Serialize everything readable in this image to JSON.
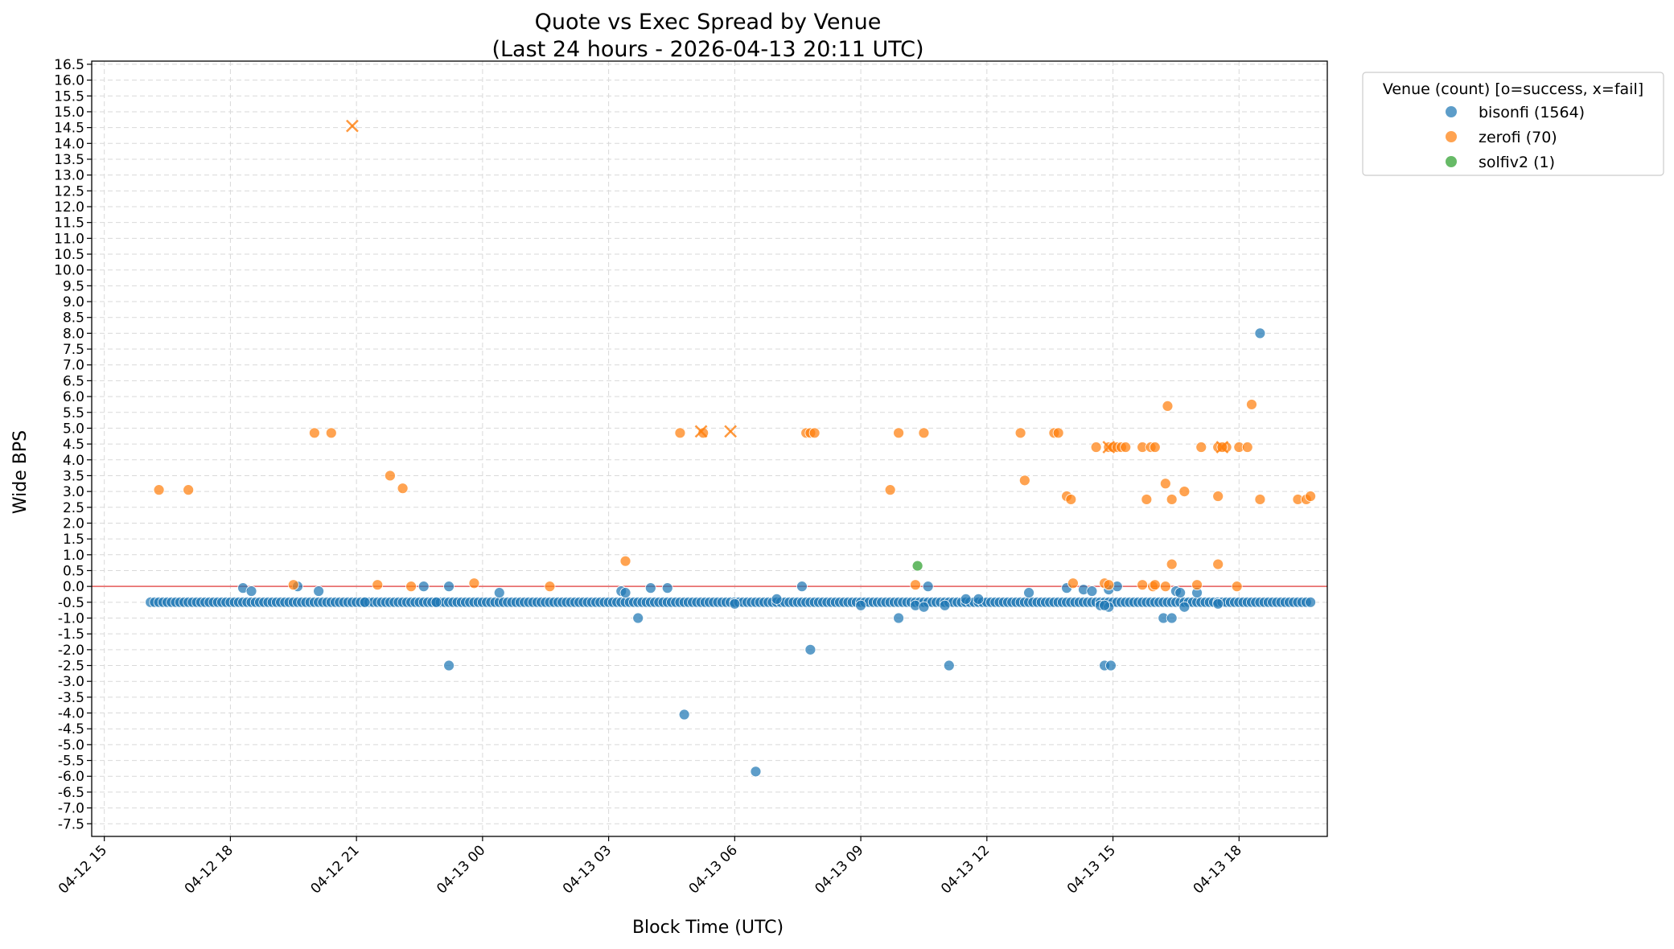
{
  "chart_data": {
    "type": "scatter",
    "title": "Quote vs Exec Spread by Venue",
    "subtitle": "(Last 24 hours - 2026-04-13 20:11 UTC)",
    "xlabel": "Block Time (UTC)",
    "ylabel": "Wide BPS",
    "x_unit": "hours since 04-12 15:00 UTC",
    "xlim": [
      -0.3,
      29.1
    ],
    "ylim": [
      -7.9,
      16.6
    ],
    "y_ticks": [
      16.5,
      16.0,
      15.5,
      15.0,
      14.5,
      14.0,
      13.5,
      13.0,
      12.5,
      12.0,
      11.5,
      11.0,
      10.5,
      10.0,
      9.5,
      9.0,
      8.5,
      8.0,
      7.5,
      7.0,
      6.5,
      6.0,
      5.5,
      5.0,
      4.5,
      4.0,
      3.5,
      3.0,
      2.5,
      2.0,
      1.5,
      1.0,
      0.5,
      0.0,
      -0.5,
      -1.0,
      -1.5,
      -2.0,
      -2.5,
      -3.0,
      -3.5,
      -4.0,
      -4.5,
      -5.0,
      -5.5,
      -6.0,
      -6.5,
      -7.0,
      -7.5
    ],
    "y_tick_labels": [
      "16.5",
      "16.0",
      "15.5",
      "15.0",
      "14.5",
      "14.0",
      "13.5",
      "13.0",
      "12.5",
      "12.0",
      "11.5",
      "11.0",
      "10.5",
      "10.0",
      "9.5",
      "9.0",
      "8.5",
      "8.0",
      "7.5",
      "7.0",
      "6.5",
      "6.0",
      "5.5",
      "5.0",
      "4.5",
      "4.0",
      "3.5",
      "3.0",
      "2.5",
      "2.0",
      "1.5",
      "1.0",
      "0.5",
      "0.0",
      "-0.5",
      "-1.0",
      "-1.5",
      "-2.0",
      "-2.5",
      "-3.0",
      "-3.5",
      "-4.0",
      "-4.5",
      "-5.0",
      "-5.5",
      "-6.0",
      "-6.5",
      "-7.0",
      "-7.5"
    ],
    "x_ticks": [
      0,
      3,
      6,
      9,
      12,
      15,
      18,
      21,
      24,
      27
    ],
    "x_tick_labels": [
      "04-12 15",
      "04-12 18",
      "04-12 21",
      "04-13 00",
      "04-13 03",
      "04-13 06",
      "04-13 09",
      "04-13 12",
      "04-13 15",
      "04-13 18"
    ],
    "reference_line": {
      "y": 0,
      "color": "#e8706f"
    },
    "grid": true,
    "legend": {
      "title": "Venue (count)  [o=success, x=fail]",
      "placement": "outside-top-right",
      "entries": [
        {
          "label": "bisonfi (1564)",
          "color": "#1f77b4"
        },
        {
          "label": "zerofi (70)",
          "color": "#ff7f0e"
        },
        {
          "label": "solfiv2 (1)",
          "color": "#2ca02c"
        }
      ]
    },
    "series": [
      {
        "name": "bisonfi",
        "color": "#1f77b4",
        "marker": "circle",
        "baseline": {
          "y": -0.5,
          "x_start": 1.1,
          "x_end": 28.7,
          "step": 0.1
        },
        "points": [
          [
            3.3,
            -0.05
          ],
          [
            3.5,
            -0.15
          ],
          [
            4.6,
            0.0
          ],
          [
            5.1,
            -0.15
          ],
          [
            6.2,
            -0.5
          ],
          [
            7.6,
            0.0
          ],
          [
            7.9,
            -0.5
          ],
          [
            8.2,
            -2.5
          ],
          [
            8.2,
            0.0
          ],
          [
            9.4,
            -0.2
          ],
          [
            12.3,
            -0.15
          ],
          [
            12.4,
            -0.2
          ],
          [
            12.7,
            -1.0
          ],
          [
            13.0,
            -0.05
          ],
          [
            13.4,
            -0.05
          ],
          [
            13.8,
            -4.05
          ],
          [
            15.5,
            -5.85
          ],
          [
            15.0,
            -0.55
          ],
          [
            16.0,
            -0.4
          ],
          [
            16.6,
            0.0
          ],
          [
            16.8,
            -2.0
          ],
          [
            18.0,
            -0.6
          ],
          [
            18.9,
            -1.0
          ],
          [
            19.3,
            -0.6
          ],
          [
            19.6,
            0.0
          ],
          [
            19.5,
            -0.65
          ],
          [
            20.0,
            -0.6
          ],
          [
            20.1,
            -2.5
          ],
          [
            20.5,
            -0.4
          ],
          [
            20.8,
            -0.4
          ],
          [
            22.0,
            -0.2
          ],
          [
            22.9,
            -0.05
          ],
          [
            23.3,
            -0.1
          ],
          [
            23.5,
            -0.15
          ],
          [
            23.7,
            -0.6
          ],
          [
            23.8,
            -2.5
          ],
          [
            23.95,
            -2.5
          ],
          [
            23.9,
            -0.65
          ],
          [
            23.8,
            -0.6
          ],
          [
            23.9,
            -0.1
          ],
          [
            24.1,
            0.0
          ],
          [
            25.2,
            -1.0
          ],
          [
            25.4,
            -1.0
          ],
          [
            25.5,
            -0.15
          ],
          [
            25.6,
            -0.2
          ],
          [
            25.7,
            -0.65
          ],
          [
            26.0,
            -0.2
          ],
          [
            26.5,
            -0.55
          ],
          [
            27.5,
            8.0
          ]
        ]
      },
      {
        "name": "zerofi",
        "color": "#ff7f0e",
        "marker": "circle",
        "points": [
          [
            1.3,
            3.05
          ],
          [
            2.0,
            3.05
          ],
          [
            4.5,
            0.05
          ],
          [
            5.0,
            4.85
          ],
          [
            5.4,
            4.85
          ],
          [
            6.5,
            0.05
          ],
          [
            6.8,
            3.5
          ],
          [
            7.1,
            3.1
          ],
          [
            7.3,
            0.0
          ],
          [
            8.8,
            0.1
          ],
          [
            10.6,
            0.0
          ],
          [
            12.4,
            0.8
          ],
          [
            13.7,
            4.85
          ],
          [
            14.25,
            4.85
          ],
          [
            16.7,
            4.85
          ],
          [
            16.8,
            4.85
          ],
          [
            16.9,
            4.85
          ],
          [
            18.7,
            3.05
          ],
          [
            18.9,
            4.85
          ],
          [
            19.3,
            0.05
          ],
          [
            19.5,
            4.85
          ],
          [
            21.8,
            4.85
          ],
          [
            21.9,
            3.35
          ],
          [
            22.6,
            4.85
          ],
          [
            22.7,
            4.85
          ],
          [
            22.9,
            2.85
          ],
          [
            23.0,
            2.75
          ],
          [
            23.05,
            0.1
          ],
          [
            23.6,
            4.4
          ],
          [
            23.8,
            0.1
          ],
          [
            23.9,
            0.05
          ],
          [
            23.9,
            4.4
          ],
          [
            24.0,
            4.4
          ],
          [
            24.1,
            4.4
          ],
          [
            24.2,
            4.4
          ],
          [
            24.3,
            4.4
          ],
          [
            24.7,
            0.05
          ],
          [
            24.8,
            2.75
          ],
          [
            24.7,
            4.4
          ],
          [
            24.9,
            4.4
          ],
          [
            24.95,
            0.0
          ],
          [
            25.0,
            0.05
          ],
          [
            25.0,
            4.4
          ],
          [
            25.25,
            3.25
          ],
          [
            25.3,
            5.7
          ],
          [
            25.4,
            0.7
          ],
          [
            25.4,
            2.75
          ],
          [
            25.25,
            0.0
          ],
          [
            25.7,
            3.0
          ],
          [
            26.0,
            0.05
          ],
          [
            26.1,
            4.4
          ],
          [
            26.5,
            4.4
          ],
          [
            26.5,
            0.7
          ],
          [
            26.5,
            2.85
          ],
          [
            26.7,
            4.4
          ],
          [
            26.95,
            0.0
          ],
          [
            27.0,
            4.4
          ],
          [
            27.2,
            4.4
          ],
          [
            27.3,
            5.75
          ],
          [
            27.5,
            2.75
          ],
          [
            28.4,
            2.75
          ],
          [
            28.6,
            2.75
          ],
          [
            28.7,
            2.85
          ],
          [
            26.6,
            4.4
          ]
        ]
      },
      {
        "name": "zerofi-fail",
        "color": "#ff7f0e",
        "marker": "x",
        "points": [
          [
            5.9,
            14.55
          ],
          [
            14.2,
            4.9
          ],
          [
            14.9,
            4.9
          ],
          [
            23.9,
            4.4
          ],
          [
            26.6,
            4.4
          ]
        ]
      },
      {
        "name": "solfiv2",
        "color": "#2ca02c",
        "marker": "circle",
        "points": [
          [
            19.35,
            0.65
          ]
        ]
      }
    ]
  }
}
